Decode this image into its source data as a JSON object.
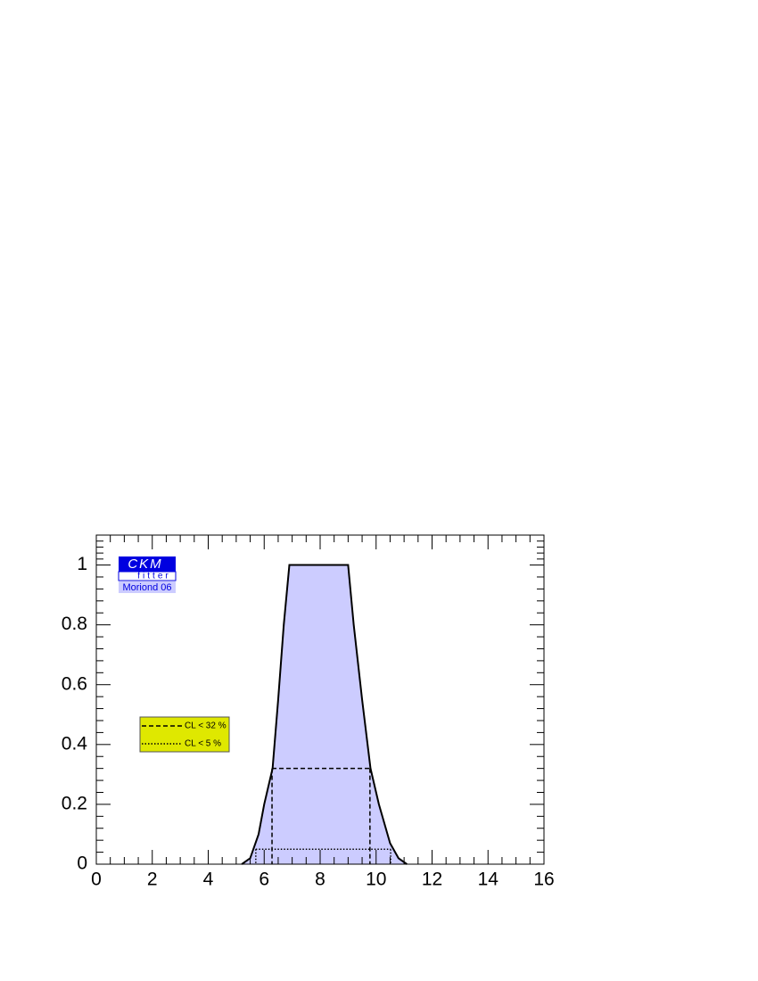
{
  "chart_data": {
    "type": "line",
    "x": [
      5.2,
      5.5,
      5.8,
      6.0,
      6.3,
      6.5,
      6.7,
      6.9,
      9.0,
      9.2,
      9.5,
      9.8,
      10.1,
      10.5,
      10.8,
      11.1
    ],
    "series": [
      {
        "values": [
          0,
          0.02,
          0.1,
          0.2,
          0.32,
          0.55,
          0.8,
          1.0,
          1.0,
          0.8,
          0.55,
          0.32,
          0.2,
          0.07,
          0.02,
          0
        ],
        "color": "#000000",
        "fill": "#ccccff"
      }
    ],
    "intervals": [
      {
        "name": "CL < 32 %",
        "level": 0.32,
        "bounds": [
          6.28,
          9.78
        ],
        "style": "dashed"
      },
      {
        "name": "CL <  5 %",
        "level": 0.05,
        "bounds": [
          5.7,
          10.52
        ],
        "style": "dotted"
      }
    ],
    "xlim": [
      0,
      16
    ],
    "xticks": [
      0,
      2,
      4,
      6,
      8,
      10,
      12,
      14,
      16
    ],
    "ylim": [
      0,
      1.1
    ],
    "yticks": [
      0,
      0.2,
      0.4,
      0.6,
      0.8,
      1
    ],
    "legend_color": "#dfe800",
    "logo": {
      "title": "CKM",
      "subtitle": "fitter",
      "tag": "Moriond 06"
    }
  }
}
